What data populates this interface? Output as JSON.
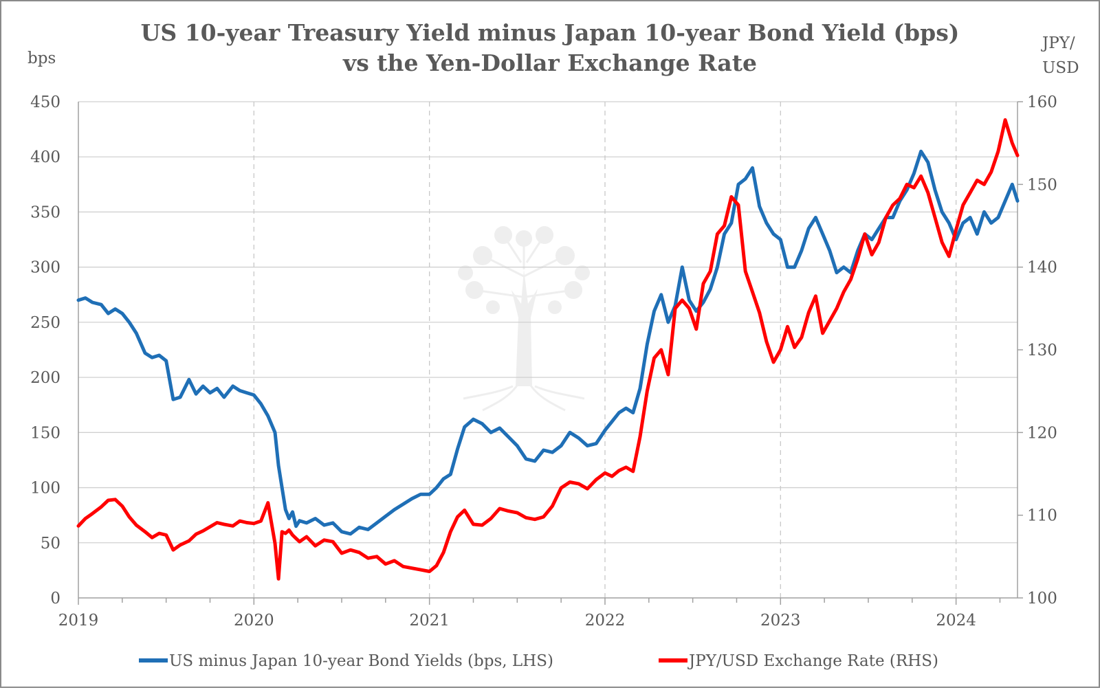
{
  "chart_data": {
    "type": "line",
    "title": "US 10-year Treasury Yield minus Japan 10-year Bond Yield (bps)",
    "subtitle": "vs the Yen-Dollar Exchange Rate",
    "y_left_unit": "bps",
    "y_right_unit_line1": "JPY/",
    "y_right_unit_line2": "USD",
    "xlim": [
      2019,
      2024.35
    ],
    "ylim_left": [
      0,
      450
    ],
    "ylim_right": [
      100,
      160
    ],
    "x_ticks": [
      {
        "value": 2019,
        "label": "2019"
      },
      {
        "value": 2020,
        "label": "2020"
      },
      {
        "value": 2021,
        "label": "2021"
      },
      {
        "value": 2022,
        "label": "2022"
      },
      {
        "value": 2023,
        "label": "2023"
      },
      {
        "value": 2024,
        "label": "2024"
      }
    ],
    "y_left_ticks": [
      {
        "value": 0,
        "label": "0"
      },
      {
        "value": 50,
        "label": "50"
      },
      {
        "value": 100,
        "label": "100"
      },
      {
        "value": 150,
        "label": "150"
      },
      {
        "value": 200,
        "label": "200"
      },
      {
        "value": 250,
        "label": "250"
      },
      {
        "value": 300,
        "label": "300"
      },
      {
        "value": 350,
        "label": "350"
      },
      {
        "value": 400,
        "label": "400"
      },
      {
        "value": 450,
        "label": "450"
      }
    ],
    "y_right_ticks": [
      {
        "value": 100,
        "label": "100"
      },
      {
        "value": 110,
        "label": "110"
      },
      {
        "value": 120,
        "label": "120"
      },
      {
        "value": 130,
        "label": "130"
      },
      {
        "value": 140,
        "label": "140"
      },
      {
        "value": 150,
        "label": "150"
      },
      {
        "value": 160,
        "label": "160"
      }
    ],
    "grid": {
      "horizontal": true,
      "vertical_dashed_at_years": true
    },
    "legend_position": "bottom",
    "series": [
      {
        "name": "US minus Japan 10-year Bond Yields (bps, LHS)",
        "axis": "left",
        "color": "#1f6fb6",
        "x": [
          2019.0,
          2019.04,
          2019.08,
          2019.13,
          2019.17,
          2019.21,
          2019.25,
          2019.29,
          2019.33,
          2019.38,
          2019.42,
          2019.46,
          2019.5,
          2019.54,
          2019.58,
          2019.63,
          2019.67,
          2019.71,
          2019.75,
          2019.79,
          2019.83,
          2019.88,
          2019.92,
          2019.96,
          2020.0,
          2020.04,
          2020.08,
          2020.12,
          2020.14,
          2020.16,
          2020.18,
          2020.2,
          2020.22,
          2020.24,
          2020.26,
          2020.3,
          2020.35,
          2020.4,
          2020.45,
          2020.5,
          2020.55,
          2020.6,
          2020.65,
          2020.7,
          2020.75,
          2020.8,
          2020.85,
          2020.9,
          2020.95,
          2021.0,
          2021.04,
          2021.08,
          2021.12,
          2021.16,
          2021.2,
          2021.25,
          2021.3,
          2021.35,
          2021.4,
          2021.45,
          2021.5,
          2021.55,
          2021.6,
          2021.65,
          2021.7,
          2021.75,
          2021.8,
          2021.85,
          2021.9,
          2021.95,
          2022.0,
          2022.04,
          2022.08,
          2022.12,
          2022.16,
          2022.2,
          2022.24,
          2022.28,
          2022.32,
          2022.36,
          2022.4,
          2022.44,
          2022.48,
          2022.52,
          2022.56,
          2022.6,
          2022.64,
          2022.68,
          2022.72,
          2022.76,
          2022.8,
          2022.84,
          2022.88,
          2022.92,
          2022.96,
          2023.0,
          2023.04,
          2023.08,
          2023.12,
          2023.16,
          2023.2,
          2023.24,
          2023.28,
          2023.32,
          2023.36,
          2023.4,
          2023.44,
          2023.48,
          2023.52,
          2023.56,
          2023.6,
          2023.64,
          2023.68,
          2023.72,
          2023.76,
          2023.8,
          2023.84,
          2023.88,
          2023.92,
          2023.96,
          2024.0,
          2024.04,
          2024.08,
          2024.12,
          2024.16,
          2024.2,
          2024.24,
          2024.28,
          2024.32,
          2024.35
        ],
        "y": [
          270,
          272,
          268,
          266,
          258,
          262,
          258,
          250,
          240,
          222,
          218,
          220,
          215,
          180,
          182,
          198,
          185,
          192,
          186,
          190,
          182,
          192,
          188,
          186,
          184,
          176,
          165,
          150,
          120,
          100,
          80,
          72,
          78,
          65,
          70,
          68,
          72,
          66,
          68,
          60,
          58,
          64,
          62,
          68,
          74,
          80,
          85,
          90,
          94,
          94,
          100,
          108,
          112,
          135,
          155,
          162,
          158,
          150,
          154,
          146,
          138,
          126,
          124,
          134,
          132,
          138,
          150,
          145,
          138,
          140,
          152,
          160,
          168,
          172,
          168,
          190,
          230,
          260,
          275,
          250,
          265,
          300,
          270,
          260,
          268,
          280,
          300,
          330,
          340,
          375,
          380,
          390,
          355,
          340,
          330,
          325,
          300,
          300,
          315,
          335,
          345,
          330,
          315,
          295,
          300,
          295,
          315,
          330,
          325,
          335,
          345,
          345,
          360,
          370,
          385,
          405,
          395,
          370,
          350,
          340,
          325,
          340,
          345,
          330,
          350,
          340,
          345,
          360,
          375,
          360
        ]
      },
      {
        "name": "JPY/USD Exchange Rate (RHS)",
        "axis": "right",
        "color": "#ff0000",
        "x": [
          2019.0,
          2019.04,
          2019.08,
          2019.13,
          2019.17,
          2019.21,
          2019.25,
          2019.29,
          2019.33,
          2019.38,
          2019.42,
          2019.46,
          2019.5,
          2019.54,
          2019.58,
          2019.63,
          2019.67,
          2019.71,
          2019.75,
          2019.79,
          2019.83,
          2019.88,
          2019.92,
          2019.96,
          2020.0,
          2020.04,
          2020.08,
          2020.12,
          2020.14,
          2020.16,
          2020.18,
          2020.2,
          2020.22,
          2020.24,
          2020.26,
          2020.3,
          2020.35,
          2020.4,
          2020.45,
          2020.5,
          2020.55,
          2020.6,
          2020.65,
          2020.7,
          2020.75,
          2020.8,
          2020.85,
          2020.9,
          2020.95,
          2021.0,
          2021.04,
          2021.08,
          2021.12,
          2021.16,
          2021.2,
          2021.25,
          2021.3,
          2021.35,
          2021.4,
          2021.45,
          2021.5,
          2021.55,
          2021.6,
          2021.65,
          2021.7,
          2021.75,
          2021.8,
          2021.85,
          2021.9,
          2021.95,
          2022.0,
          2022.04,
          2022.08,
          2022.12,
          2022.16,
          2022.2,
          2022.24,
          2022.28,
          2022.32,
          2022.36,
          2022.4,
          2022.44,
          2022.48,
          2022.52,
          2022.56,
          2022.6,
          2022.64,
          2022.68,
          2022.72,
          2022.76,
          2022.8,
          2022.84,
          2022.88,
          2022.92,
          2022.96,
          2023.0,
          2023.04,
          2023.08,
          2023.12,
          2023.16,
          2023.2,
          2023.24,
          2023.28,
          2023.32,
          2023.36,
          2023.4,
          2023.44,
          2023.48,
          2023.52,
          2023.56,
          2023.6,
          2023.64,
          2023.68,
          2023.72,
          2023.76,
          2023.8,
          2023.84,
          2023.88,
          2023.92,
          2023.96,
          2024.0,
          2024.04,
          2024.08,
          2024.12,
          2024.16,
          2024.2,
          2024.24,
          2024.28,
          2024.32,
          2024.35
        ],
        "y": [
          108.7,
          109.6,
          110.2,
          111.0,
          111.8,
          111.9,
          111.1,
          109.8,
          108.8,
          108.0,
          107.3,
          107.8,
          107.6,
          105.8,
          106.4,
          106.9,
          107.7,
          108.1,
          108.6,
          109.1,
          108.9,
          108.7,
          109.3,
          109.1,
          109.0,
          109.3,
          111.5,
          106.6,
          102.3,
          108.0,
          107.8,
          108.2,
          107.6,
          107.2,
          106.8,
          107.4,
          106.3,
          107.0,
          106.8,
          105.4,
          105.8,
          105.5,
          104.8,
          105.0,
          104.1,
          104.5,
          103.8,
          103.6,
          103.4,
          103.2,
          103.9,
          105.5,
          108.0,
          109.8,
          110.6,
          108.9,
          108.8,
          109.6,
          110.8,
          110.5,
          110.3,
          109.7,
          109.5,
          109.8,
          111.1,
          113.3,
          114.0,
          113.8,
          113.2,
          114.3,
          115.1,
          114.7,
          115.4,
          115.8,
          115.3,
          119.5,
          125.0,
          129.0,
          130.0,
          127.0,
          135.0,
          136.0,
          135.0,
          132.5,
          138.0,
          139.5,
          144.0,
          145.0,
          148.5,
          147.5,
          139.5,
          137.0,
          134.5,
          131.0,
          128.5,
          130.0,
          132.8,
          130.3,
          131.5,
          134.5,
          136.5,
          132.0,
          133.5,
          135.0,
          137.0,
          138.5,
          141.0,
          144.0,
          141.5,
          143.0,
          146.0,
          147.5,
          148.3,
          150.0,
          149.6,
          151.0,
          149.0,
          146.0,
          143.0,
          141.3,
          144.5,
          147.5,
          149.0,
          150.5,
          150.0,
          151.5,
          154.0,
          157.8,
          155.0,
          153.5
        ]
      }
    ]
  },
  "legend": {
    "blue_label": "US minus Japan 10-year Bond Yields (bps, LHS)",
    "red_label": "JPY/USD Exchange Rate (RHS)"
  },
  "watermark": "tree-logo"
}
